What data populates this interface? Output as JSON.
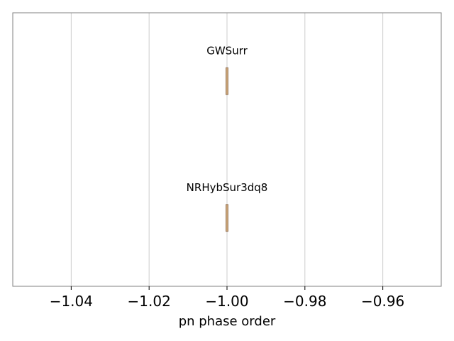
{
  "chart_data": {
    "type": "violin",
    "title": "",
    "xlabel": "pn phase order",
    "ylabel": "",
    "xlim": [
      -1.055,
      -0.945
    ],
    "xticks": [
      -1.04,
      -1.02,
      -1.0,
      -0.98,
      -0.96
    ],
    "xtick_labels": [
      "−1.04",
      "−1.02",
      "−1.00",
      "−0.98",
      "−0.96"
    ],
    "grid": "x-major",
    "orientation": "horizontal",
    "series": [
      {
        "name": "GWSurr",
        "value": -1.0
      },
      {
        "name": "NRHybSur3dq8",
        "value": -1.0
      }
    ],
    "colors": {
      "violin_fill": "#c69c6d",
      "violin_edge": "#8c6d4f",
      "grid": "#cccccc",
      "frame": "#808080"
    }
  }
}
